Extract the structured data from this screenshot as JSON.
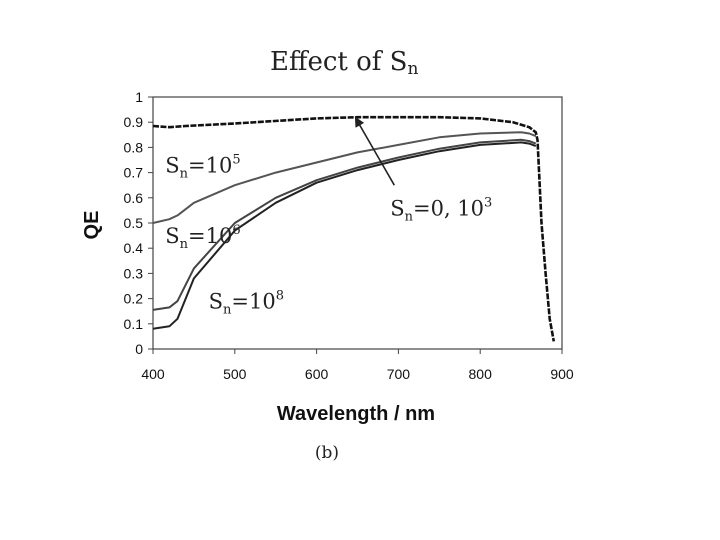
{
  "chart_data": {
    "type": "line",
    "title": "Effect of S",
    "title_sub": "n",
    "xlabel": "Wavelength / nm",
    "ylabel": "QE",
    "caption": "(b)",
    "xlim": [
      400,
      900
    ],
    "ylim": [
      0,
      1
    ],
    "xticks": [
      "400",
      "500",
      "600",
      "700",
      "800",
      "900"
    ],
    "yticks": [
      "0",
      "0.1",
      "0.2",
      "0.3",
      "0.4",
      "0.5",
      "0.6",
      "0.7",
      "0.8",
      "0.9",
      "1"
    ],
    "grid": false,
    "series": [
      {
        "name": "Sn=0, 10^3",
        "label_main": "S",
        "label_sub": "n",
        "label_eq": "=0, 10",
        "label_sup": "3",
        "color": "#111111",
        "x": [
          400,
          420,
          440,
          500,
          600,
          650,
          700,
          750,
          800,
          840,
          860,
          868,
          870,
          872,
          875,
          880,
          885,
          890
        ],
        "y": [
          0.885,
          0.88,
          0.885,
          0.895,
          0.915,
          0.92,
          0.92,
          0.92,
          0.915,
          0.9,
          0.88,
          0.86,
          0.83,
          0.7,
          0.5,
          0.3,
          0.12,
          0.03
        ]
      },
      {
        "name": "Sn=10^5",
        "label_main": "S",
        "label_sub": "n",
        "label_eq": "=10",
        "label_sup": "5",
        "color": "#555555",
        "x": [
          400,
          420,
          430,
          450,
          500,
          550,
          600,
          650,
          700,
          750,
          800,
          850,
          860,
          868
        ],
        "y": [
          0.5,
          0.515,
          0.53,
          0.58,
          0.65,
          0.7,
          0.74,
          0.78,
          0.81,
          0.84,
          0.855,
          0.86,
          0.855,
          0.845
        ]
      },
      {
        "name": "Sn=10^6",
        "label_main": "S",
        "label_sub": "n",
        "label_eq": "=10",
        "label_sup": "6",
        "color": "#444444",
        "x": [
          400,
          420,
          430,
          450,
          500,
          550,
          600,
          650,
          700,
          750,
          800,
          850,
          860,
          868
        ],
        "y": [
          0.155,
          0.165,
          0.19,
          0.32,
          0.5,
          0.6,
          0.67,
          0.72,
          0.76,
          0.795,
          0.82,
          0.83,
          0.825,
          0.815
        ]
      },
      {
        "name": "Sn=10^8",
        "label_main": "S",
        "label_sub": "n",
        "label_eq": "=10",
        "label_sup": "8",
        "color": "#222222",
        "x": [
          400,
          420,
          430,
          450,
          500,
          550,
          600,
          650,
          700,
          750,
          800,
          850,
          860,
          868
        ],
        "y": [
          0.08,
          0.09,
          0.12,
          0.28,
          0.47,
          0.58,
          0.66,
          0.71,
          0.75,
          0.785,
          0.81,
          0.82,
          0.815,
          0.805
        ]
      }
    ],
    "annotations": [
      {
        "series_index": 1,
        "label_x": 415,
        "label_y": 0.7
      },
      {
        "series_index": 2,
        "label_x": 415,
        "label_y": 0.42
      },
      {
        "series_index": 3,
        "label_x": 468,
        "label_y": 0.16
      },
      {
        "series_index": 0,
        "label_x": 690,
        "label_y": 0.53,
        "arrow_to_x": 648,
        "arrow_to_y": 0.915,
        "arrow_from_x": 695,
        "arrow_from_y": 0.65
      }
    ]
  }
}
